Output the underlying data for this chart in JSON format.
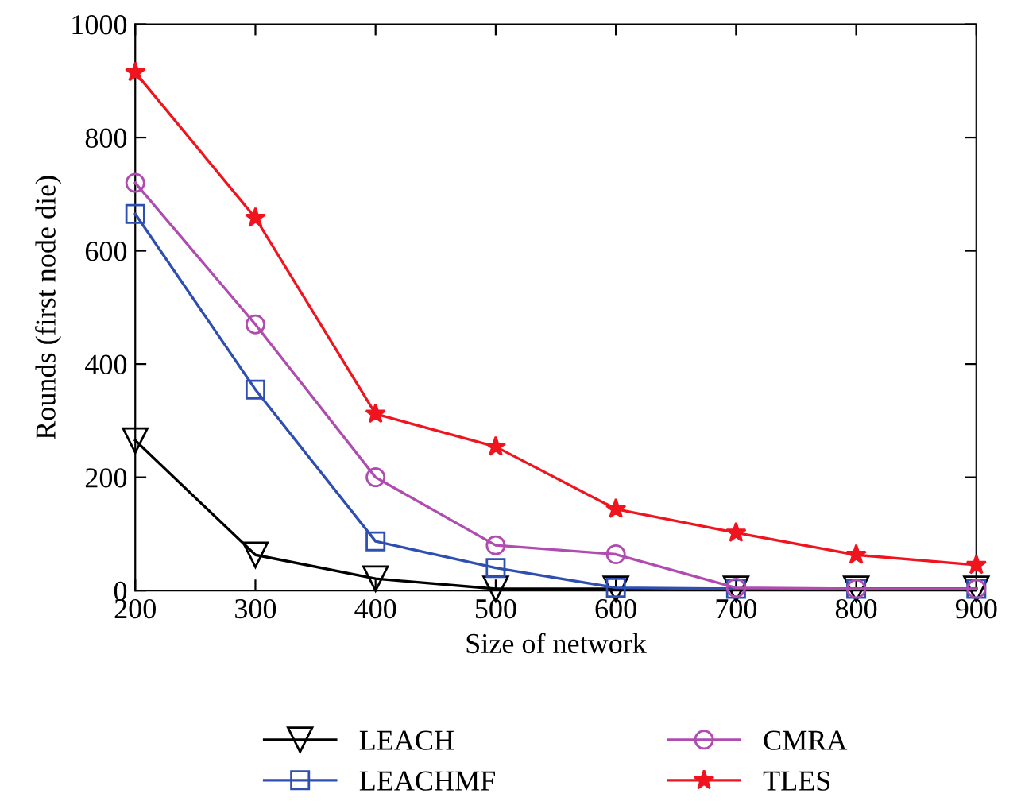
{
  "chart_data": {
    "type": "line",
    "xlabel": "Size of network",
    "ylabel": "Rounds (first node die)",
    "x": [
      200,
      300,
      400,
      500,
      600,
      700,
      800,
      900
    ],
    "xlim": [
      200,
      900
    ],
    "xticks": [
      200,
      300,
      400,
      500,
      600,
      700,
      800,
      900
    ],
    "ylim": [
      0,
      1000
    ],
    "yticks": [
      0,
      200,
      400,
      600,
      800,
      1000
    ],
    "grid": false,
    "legend": "bottom",
    "line_style": "solid",
    "series": [
      {
        "name": "LEACH",
        "color": "#000000",
        "marker": "triangle",
        "values": [
          265,
          63,
          21,
          3,
          3,
          3,
          3,
          3
        ]
      },
      {
        "name": "LEACHMF",
        "color": "#2f4fb0",
        "marker": "square",
        "values": [
          665,
          355,
          87,
          40,
          5,
          3,
          3,
          3
        ]
      },
      {
        "name": "CMRA",
        "color": "#b04cb0",
        "marker": "circle",
        "values": [
          720,
          470,
          200,
          80,
          64,
          5,
          3,
          3
        ]
      },
      {
        "name": "TLES",
        "color": "#f0141e",
        "marker": "star",
        "values": [
          915,
          658,
          312,
          254,
          144,
          102,
          63,
          45
        ]
      }
    ]
  }
}
